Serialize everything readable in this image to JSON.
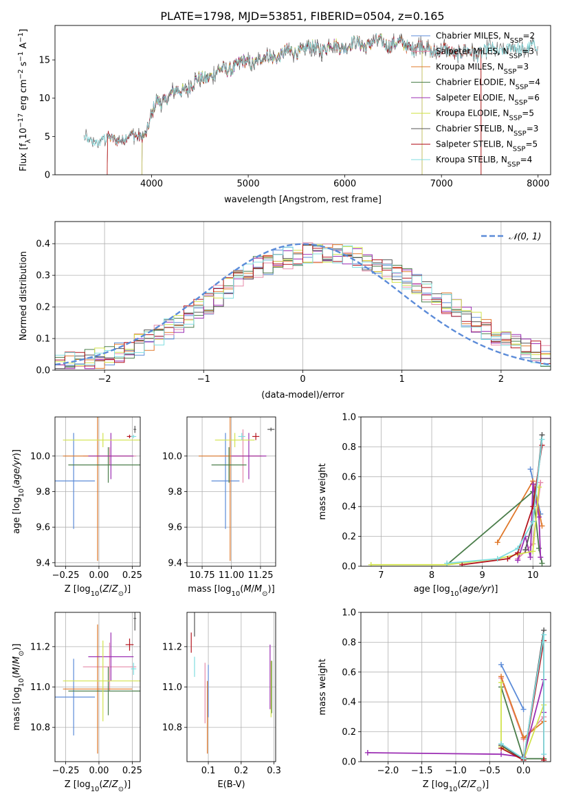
{
  "figure_title": "PLATE=1798, MJD=53851, FIBERID=0504, z=0.165",
  "colors": {
    "Chabrier MILES": "#5b8bd8",
    "Salpeter MILES": "#e58aa9",
    "Kroupa MILES": "#e0782a",
    "Chabrier ELODIE": "#4a7d4a",
    "Salpeter ELODIE": "#9b2db3",
    "Kroupa ELODIE": "#d2e34c",
    "Chabrier STELIB": "#555555",
    "Salpeter STELIB": "#b4141e",
    "Kroupa STELIB": "#7fdde0",
    "normal_curve": "#5b8bd8",
    "grid": "#b0b0b0"
  },
  "chart_data": [
    {
      "id": "spectrum",
      "type": "line",
      "title": "PLATE=1798, MJD=53851, FIBERID=0504, z=0.165",
      "xlabel": "wavelength [Angstrom, rest frame]",
      "ylabel": "Flux [f_λ 10^-17 erg cm^-2 s^-1 A^-1]",
      "xlim": [
        3000,
        8130
      ],
      "ylim": [
        0,
        19.5
      ],
      "xticks": [
        4000,
        5000,
        6000,
        7000,
        8000
      ],
      "yticks": [
        0,
        5,
        10,
        15
      ],
      "grid": false,
      "legend_position": "top-right",
      "continuum_anchors": [
        [
          3300,
          4.4
        ],
        [
          3500,
          4.5
        ],
        [
          3800,
          4.9
        ],
        [
          3950,
          5.5
        ],
        [
          4050,
          9.5
        ],
        [
          4300,
          11.0
        ],
        [
          4600,
          13.0
        ],
        [
          4900,
          14.4
        ],
        [
          5200,
          15.3
        ],
        [
          5500,
          16.2
        ],
        [
          5800,
          16.6
        ],
        [
          6100,
          17.0
        ],
        [
          6400,
          17.3
        ],
        [
          6700,
          16.8
        ],
        [
          7000,
          16.2
        ],
        [
          7300,
          15.9
        ],
        [
          7600,
          16.3
        ],
        [
          7900,
          16.6
        ]
      ],
      "legend": [
        {
          "name": "Chabrier MILES, N_SSP=2",
          "label_main": "Chabrier MILES, N",
          "label_sub": "SSP",
          "label_end": "=2"
        },
        {
          "name": "Salpeter MILES, N_SSP=3",
          "label_main": "Salpeter MILES, N",
          "label_sub": "SSP",
          "label_end": "=3"
        },
        {
          "name": "Kroupa MILES, N_SSP=3",
          "label_main": "Kroupa MILES, N",
          "label_sub": "SSP",
          "label_end": "=3"
        },
        {
          "name": "Chabrier ELODIE, N_SSP=4",
          "label_main": "Chabrier ELODIE, N",
          "label_sub": "SSP",
          "label_end": "=4"
        },
        {
          "name": "Salpeter ELODIE, N_SSP=6",
          "label_main": "Salpeter ELODIE, N",
          "label_sub": "SSP",
          "label_end": "=6"
        },
        {
          "name": "Kroupa ELODIE, N_SSP=5",
          "label_main": "Kroupa ELODIE, N",
          "label_sub": "SSP",
          "label_end": "=5"
        },
        {
          "name": "Chabrier STELIB, N_SSP=3",
          "label_main": "Chabrier STELIB, N",
          "label_sub": "SSP",
          "label_end": "=3"
        },
        {
          "name": "Salpeter STELIB, N_SSP=5",
          "label_main": "Salpeter STELIB, N",
          "label_sub": "SSP",
          "label_end": "=5"
        },
        {
          "name": "Kroupa STELIB, N_SSP=4",
          "label_main": "Kroupa STELIB, N",
          "label_sub": "SSP",
          "label_end": "=4"
        }
      ],
      "series_ranges": [
        {
          "model": "Chabrier MILES",
          "x_start": 3540,
          "x_end": 7410
        },
        {
          "model": "Salpeter MILES",
          "x_start": 3540,
          "x_end": 7410
        },
        {
          "model": "Kroupa MILES",
          "x_start": 3540,
          "x_end": 7410
        },
        {
          "model": "Chabrier ELODIE",
          "x_start": 3900,
          "x_end": 6800
        },
        {
          "model": "Salpeter ELODIE",
          "x_start": 3900,
          "x_end": 6800
        },
        {
          "model": "Kroupa ELODIE",
          "x_start": 3900,
          "x_end": 6800
        },
        {
          "model": "Chabrier STELIB",
          "x_start": 3300,
          "x_end": 8000
        },
        {
          "model": "Salpeter STELIB",
          "x_start": 3540,
          "x_end": 7410
        },
        {
          "model": "Kroupa STELIB",
          "x_start": 3300,
          "x_end": 8000
        }
      ]
    },
    {
      "id": "residuals",
      "type": "histogram",
      "xlabel": "(data-model)/error",
      "ylabel": "Normed distribution",
      "xlim": [
        -2.5,
        2.5
      ],
      "ylim": [
        0,
        0.47
      ],
      "xticks": [
        -2,
        -1,
        0,
        1,
        2
      ],
      "yticks": [
        0.0,
        0.1,
        0.2,
        0.3,
        0.4
      ],
      "grid": true,
      "legend_position": "top-right",
      "legend": "𝒩(0, 1)",
      "bin_width": 0.1,
      "profile_x": [
        -2.5,
        -2.0,
        -1.5,
        -1.0,
        -0.5,
        0.0,
        0.5,
        1.0,
        1.5,
        2.0,
        2.5
      ],
      "profile_y": [
        0.02,
        0.04,
        0.1,
        0.2,
        0.32,
        0.37,
        0.36,
        0.3,
        0.2,
        0.1,
        0.04
      ]
    },
    {
      "id": "z_vs_age",
      "type": "errorbar",
      "xlabel": "Z [log10(Z/Z⊙)]",
      "ylabel": "age [log10(age/yr)]",
      "xlim": [
        -0.33,
        0.31
      ],
      "ylim": [
        9.38,
        10.22
      ],
      "xticks": [
        -0.25,
        0.0,
        0.25
      ],
      "xticklabels": [
        "−0.25",
        "0.00",
        "0.25"
      ],
      "yticks": [
        9.4,
        9.6,
        9.8,
        10.0
      ],
      "yticklabels": [
        "9.4",
        "9.6",
        "9.8",
        "10.0"
      ],
      "grid": true,
      "points": [
        {
          "model": "Chabrier MILES",
          "x": -0.19,
          "xerr": 0.16,
          "y": 9.86,
          "yerr": 0.27
        },
        {
          "model": "Salpeter MILES",
          "x": 0.08,
          "xerr": 0.2,
          "y": 10.0,
          "yerr": 0.05
        },
        {
          "model": "Kroupa MILES",
          "x": -0.01,
          "xerr": 0.26,
          "y": 10.0,
          "yerr": 0.59
        },
        {
          "model": "Chabrier ELODIE",
          "x": 0.07,
          "xerr": 0.3,
          "y": 9.95,
          "yerr": 0.1
        },
        {
          "model": "Salpeter ELODIE",
          "x": 0.09,
          "xerr": 0.17,
          "y": 10.0,
          "yerr": 0.13
        },
        {
          "model": "Kroupa ELODIE",
          "x": 0.03,
          "xerr": 0.3,
          "y": 10.09,
          "yerr": 0.04
        },
        {
          "model": "Chabrier STELIB",
          "x": 0.27,
          "xerr": 0.01,
          "y": 10.15,
          "yerr": 0.02
        },
        {
          "model": "Salpeter STELIB",
          "x": 0.23,
          "xerr": 0.02,
          "y": 10.11,
          "yerr": 0.01
        },
        {
          "model": "Kroupa STELIB",
          "x": 0.26,
          "xerr": 0.02,
          "y": 10.11,
          "yerr": 0.01
        }
      ]
    },
    {
      "id": "mass_vs_age",
      "type": "errorbar",
      "xlabel": "mass [log10(M/M⊙)]",
      "ylabel": "",
      "xlim": [
        10.62,
        11.38
      ],
      "ylim": [
        9.38,
        10.22
      ],
      "xticks": [
        10.75,
        11.0,
        11.25
      ],
      "xticklabels": [
        "10.75",
        "11.00",
        "11.25"
      ],
      "yticks": [
        9.4,
        9.6,
        9.8,
        10.0
      ],
      "yticklabels": [
        "9.4",
        "9.6",
        "9.8",
        "10.0"
      ],
      "grid": true,
      "points": [
        {
          "model": "Chabrier MILES",
          "x": 10.95,
          "xerr": 0.12,
          "y": 9.86,
          "yerr": 0.27
        },
        {
          "model": "Salpeter MILES",
          "x": 11.1,
          "xerr": 0.2,
          "y": 10.0,
          "yerr": 0.15
        },
        {
          "model": "Kroupa MILES",
          "x": 10.99,
          "xerr": 0.27,
          "y": 10.0,
          "yerr": 0.59
        },
        {
          "model": "Chabrier ELODIE",
          "x": 10.98,
          "xerr": 0.15,
          "y": 9.95,
          "yerr": 0.1
        },
        {
          "model": "Salpeter ELODIE",
          "x": 11.15,
          "xerr": 0.15,
          "y": 10.0,
          "yerr": 0.13
        },
        {
          "model": "Kroupa ELODIE",
          "x": 11.03,
          "xerr": 0.17,
          "y": 10.09,
          "yerr": 0.04
        },
        {
          "model": "Chabrier STELIB",
          "x": 11.34,
          "xerr": 0.03,
          "y": 10.15,
          "yerr": 0.01
        },
        {
          "model": "Salpeter STELIB",
          "x": 11.21,
          "xerr": 0.03,
          "y": 10.11,
          "yerr": 0.02
        },
        {
          "model": "Kroupa STELIB",
          "x": 11.09,
          "xerr": 0.03,
          "y": 10.11,
          "yerr": 0.02
        }
      ]
    },
    {
      "id": "age_vs_mass_weight",
      "type": "line",
      "xlabel": "age [log10(age/yr)]",
      "ylabel": "mass weight",
      "xlim": [
        6.6,
        10.35
      ],
      "ylim": [
        0,
        1.0
      ],
      "xticks": [
        7,
        8,
        9,
        10
      ],
      "xticklabels": [
        "7",
        "8",
        "9",
        "10"
      ],
      "yticks": [
        0.0,
        0.2,
        0.4,
        0.6,
        0.8,
        1.0
      ],
      "yticklabels": [
        "0.0",
        "0.2",
        "0.4",
        "0.6",
        "0.8",
        "1.0"
      ],
      "grid": true,
      "series": [
        {
          "model": "Chabrier MILES",
          "x": [
            9.95,
            10.15
          ],
          "y": [
            0.65,
            0.35
          ]
        },
        {
          "model": "Salpeter MILES",
          "x": [
            9.7,
            10.0,
            10.15
          ],
          "y": [
            0.05,
            0.15,
            0.56
          ]
        },
        {
          "model": "Kroupa MILES",
          "x": [
            9.3,
            10.0,
            10.18
          ],
          "y": [
            0.16,
            0.57,
            0.27
          ]
        },
        {
          "model": "Chabrier ELODIE",
          "x": [
            8.3,
            10.0,
            10.12,
            10.18
          ],
          "y": [
            0.01,
            0.5,
            0.12,
            0.02
          ]
        },
        {
          "model": "Salpeter ELODIE",
          "x": [
            9.7,
            9.85,
            9.95,
            10.0,
            10.12,
            10.15
          ],
          "y": [
            0.04,
            0.2,
            0.06,
            0.55,
            0.33,
            0.06
          ]
        },
        {
          "model": "Kroupa ELODIE",
          "x": [
            6.8,
            8.3,
            9.3,
            9.7,
            10.0,
            10.12
          ],
          "y": [
            0.01,
            0.01,
            0.05,
            0.08,
            0.1,
            0.53
          ]
        },
        {
          "model": "Chabrier STELIB",
          "x": [
            9.85,
            10.0,
            10.18
          ],
          "y": [
            0.11,
            0.3,
            0.88
          ]
        },
        {
          "model": "Salpeter STELIB",
          "x": [
            8.6,
            9.5,
            9.7,
            10.0,
            10.18
          ],
          "y": [
            0.01,
            0.05,
            0.09,
            0.4,
            0.81
          ]
        },
        {
          "model": "Kroupa STELIB",
          "x": [
            8.3,
            9.3,
            9.7,
            10.0,
            10.18
          ],
          "y": [
            0.02,
            0.05,
            0.12,
            0.3,
            0.85
          ]
        }
      ]
    },
    {
      "id": "z_vs_mass",
      "type": "errorbar",
      "xlabel": "Z [log10(Z/Z⊙)]",
      "ylabel": "mass [log10(M/M⊙)]",
      "xlim": [
        -0.33,
        0.31
      ],
      "ylim": [
        10.63,
        11.37
      ],
      "xticks": [
        -0.25,
        0.0,
        0.25
      ],
      "xticklabels": [
        "−0.25",
        "0.00",
        "0.25"
      ],
      "yticks": [
        10.8,
        11.0,
        11.2
      ],
      "yticklabels": [
        "10.8",
        "11.0",
        "11.2"
      ],
      "grid": true,
      "points": [
        {
          "model": "Chabrier MILES",
          "x": -0.19,
          "xerr": 0.16,
          "y": 10.95,
          "yerr": 0.19
        },
        {
          "model": "Salpeter MILES",
          "x": 0.08,
          "xerr": 0.2,
          "y": 11.1,
          "yerr": 0.12
        },
        {
          "model": "Kroupa MILES",
          "x": -0.01,
          "xerr": 0.26,
          "y": 10.99,
          "yerr": 0.32
        },
        {
          "model": "Chabrier ELODIE",
          "x": 0.07,
          "xerr": 0.3,
          "y": 10.98,
          "yerr": 0.12
        },
        {
          "model": "Salpeter ELODIE",
          "x": 0.09,
          "xerr": 0.17,
          "y": 11.15,
          "yerr": 0.12
        },
        {
          "model": "Kroupa ELODIE",
          "x": 0.03,
          "xerr": 0.3,
          "y": 11.03,
          "yerr": 0.2
        },
        {
          "model": "Chabrier STELIB",
          "x": 0.27,
          "xerr": 0.01,
          "y": 11.34,
          "yerr": 0.06
        },
        {
          "model": "Salpeter STELIB",
          "x": 0.23,
          "xerr": 0.03,
          "y": 11.21,
          "yerr": 0.03
        },
        {
          "model": "Kroupa STELIB",
          "x": 0.26,
          "xerr": 0.02,
          "y": 11.09,
          "yerr": 0.03
        }
      ]
    },
    {
      "id": "ebv_vs_mass",
      "type": "errorbar",
      "xlabel": "E(B-V)",
      "ylabel": "",
      "xlim": [
        0.035,
        0.305
      ],
      "ylim": [
        10.63,
        11.37
      ],
      "xticks": [
        0.1,
        0.2,
        0.3
      ],
      "xticklabels": [
        "0.1",
        "0.2",
        "0.3"
      ],
      "yticks": [
        10.8,
        11.0,
        11.2
      ],
      "yticklabels": [
        "10.8",
        "11.0",
        "11.2"
      ],
      "grid": true,
      "points": [
        {
          "model": "Chabrier MILES",
          "x": 0.1,
          "y": 10.98,
          "yerr": 0.13
        },
        {
          "model": "Salpeter MILES",
          "x": 0.09,
          "y": 10.97,
          "yerr": 0.15
        },
        {
          "model": "Kroupa MILES",
          "x": 0.097,
          "y": 10.85,
          "yerr": 0.18
        },
        {
          "model": "Chabrier ELODIE",
          "x": 0.293,
          "y": 11.0,
          "yerr": 0.13
        },
        {
          "model": "Salpeter ELODIE",
          "x": 0.288,
          "y": 11.05,
          "yerr": 0.16
        },
        {
          "model": "Kroupa ELODIE",
          "x": 0.291,
          "y": 10.99,
          "yerr": 0.14
        },
        {
          "model": "Chabrier STELIB",
          "x": 0.058,
          "y": 11.31,
          "yerr": 0.06
        },
        {
          "model": "Salpeter STELIB",
          "x": 0.048,
          "y": 11.22,
          "yerr": 0.05
        },
        {
          "model": "Kroupa STELIB",
          "x": 0.058,
          "y": 11.1,
          "yerr": 0.05
        }
      ]
    },
    {
      "id": "z_vs_mass_weight",
      "type": "line",
      "xlabel": "Z [log10(Z/Z⊙)]",
      "ylabel": "mass weight",
      "xlim": [
        -2.4,
        0.4
      ],
      "ylim": [
        0,
        1.0
      ],
      "xticks": [
        -2.0,
        -1.5,
        -1.0,
        -0.5,
        0.0
      ],
      "xticklabels": [
        "−2.0",
        "−1.5",
        "−1.0",
        "−0.5",
        "0.0"
      ],
      "yticks": [
        0.0,
        0.2,
        0.4,
        0.6,
        0.8,
        1.0
      ],
      "yticklabels": [
        "0.0",
        "0.2",
        "0.4",
        "0.6",
        "0.8",
        "1.0"
      ],
      "grid": true,
      "series": [
        {
          "model": "Chabrier MILES",
          "x": [
            -0.33,
            0.0
          ],
          "y": [
            0.65,
            0.35
          ]
        },
        {
          "model": "Salpeter MILES",
          "x": [
            -0.33,
            0.0,
            0.3
          ],
          "y": [
            0.56,
            0.15,
            0.3
          ]
        },
        {
          "model": "Kroupa MILES",
          "x": [
            -0.33,
            0.0,
            0.3
          ],
          "y": [
            0.57,
            0.16,
            0.27
          ]
        },
        {
          "model": "Chabrier ELODIE",
          "x": [
            -0.33,
            0.0,
            0.3
          ],
          "y": [
            0.5,
            0.02,
            0.02
          ]
        },
        {
          "model": "Salpeter ELODIE",
          "x": [
            -2.3,
            -0.33,
            0.0,
            0.3,
            0.3
          ],
          "y": [
            0.06,
            0.05,
            0.03,
            0.55,
            0.33
          ]
        },
        {
          "model": "Kroupa ELODIE",
          "x": [
            -0.33,
            -0.33,
            0.0,
            0.3
          ],
          "y": [
            0.53,
            0.1,
            0.01,
            0.38
          ]
        },
        {
          "model": "Chabrier STELIB",
          "x": [
            -0.33,
            0.0,
            0.3
          ],
          "y": [
            0.11,
            0.01,
            0.88
          ]
        },
        {
          "model": "Salpeter STELIB",
          "x": [
            -0.33,
            0.0,
            0.3,
            0.3
          ],
          "y": [
            0.09,
            0.01,
            0.81,
            0.01
          ]
        },
        {
          "model": "Kroupa STELIB",
          "x": [
            -0.33,
            0.0,
            0.3,
            0.3
          ],
          "y": [
            0.12,
            0.02,
            0.85,
            0.05
          ]
        }
      ]
    }
  ]
}
